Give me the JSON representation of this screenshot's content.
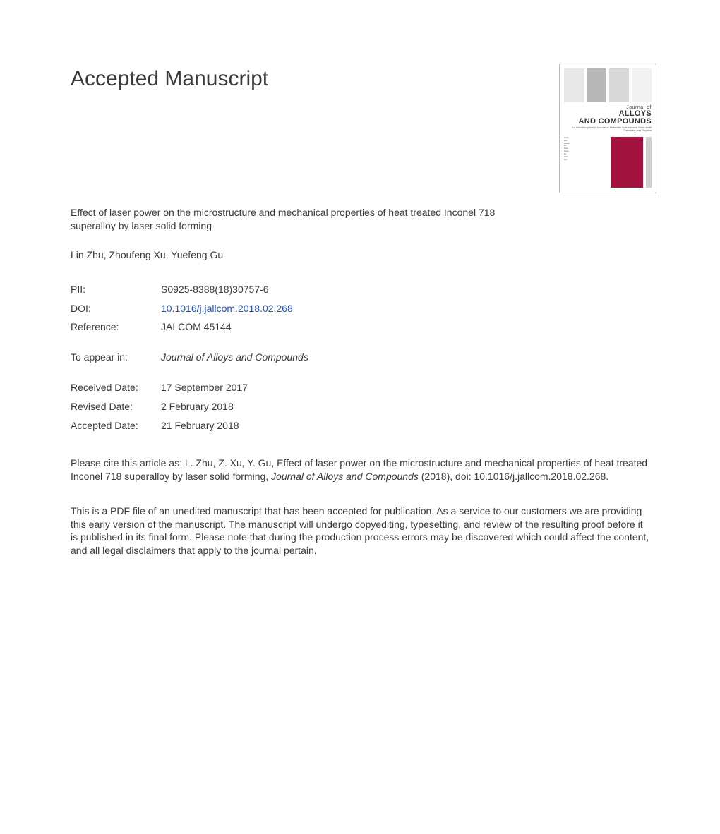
{
  "heading": "Accepted Manuscript",
  "cover": {
    "journal_of": "Journal of",
    "line1": "ALLOYS",
    "line2": "AND COMPOUNDS",
    "subtitle": "An Interdisciplinary Journal of Materials Science and Solid-state Chemistry and Physics"
  },
  "title": "Effect of laser power on the microstructure and mechanical properties of heat treated Inconel 718 superalloy by laser solid forming",
  "authors": "Lin Zhu, Zhoufeng Xu, Yuefeng Gu",
  "meta": {
    "pii_label": "PII:",
    "pii_value": "S0925-8388(18)30757-6",
    "doi_label": "DOI:",
    "doi_value": "10.1016/j.jallcom.2018.02.268",
    "ref_label": "Reference:",
    "ref_value": "JALCOM 45144"
  },
  "journal": {
    "label": "To appear in:",
    "value": "Journal of Alloys and Compounds"
  },
  "dates": {
    "received_label": "Received Date:",
    "received_value": "17 September 2017",
    "revised_label": "Revised Date:",
    "revised_value": "2 February 2018",
    "accepted_label": "Accepted Date:",
    "accepted_value": "21 February 2018"
  },
  "cite": {
    "prefix": "Please cite this article as: L. Zhu, Z. Xu, Y. Gu, Effect of laser power on the microstructure and mechanical properties of heat treated Inconel 718 superalloy by laser solid forming, ",
    "journal": "Journal of Alloys and Compounds",
    "suffix": " (2018), doi: 10.1016/j.jallcom.2018.02.268."
  },
  "disclaimer": "This is a PDF file of an unedited manuscript that has been accepted for publication. As a service to our customers we are providing this early version of the manuscript. The manuscript will undergo copyediting, typesetting, and review of the resulting proof before it is published in its final form. Please note that during the production process errors may be discovered which could affect the content, and all legal disclaimers that apply to the journal pertain."
}
